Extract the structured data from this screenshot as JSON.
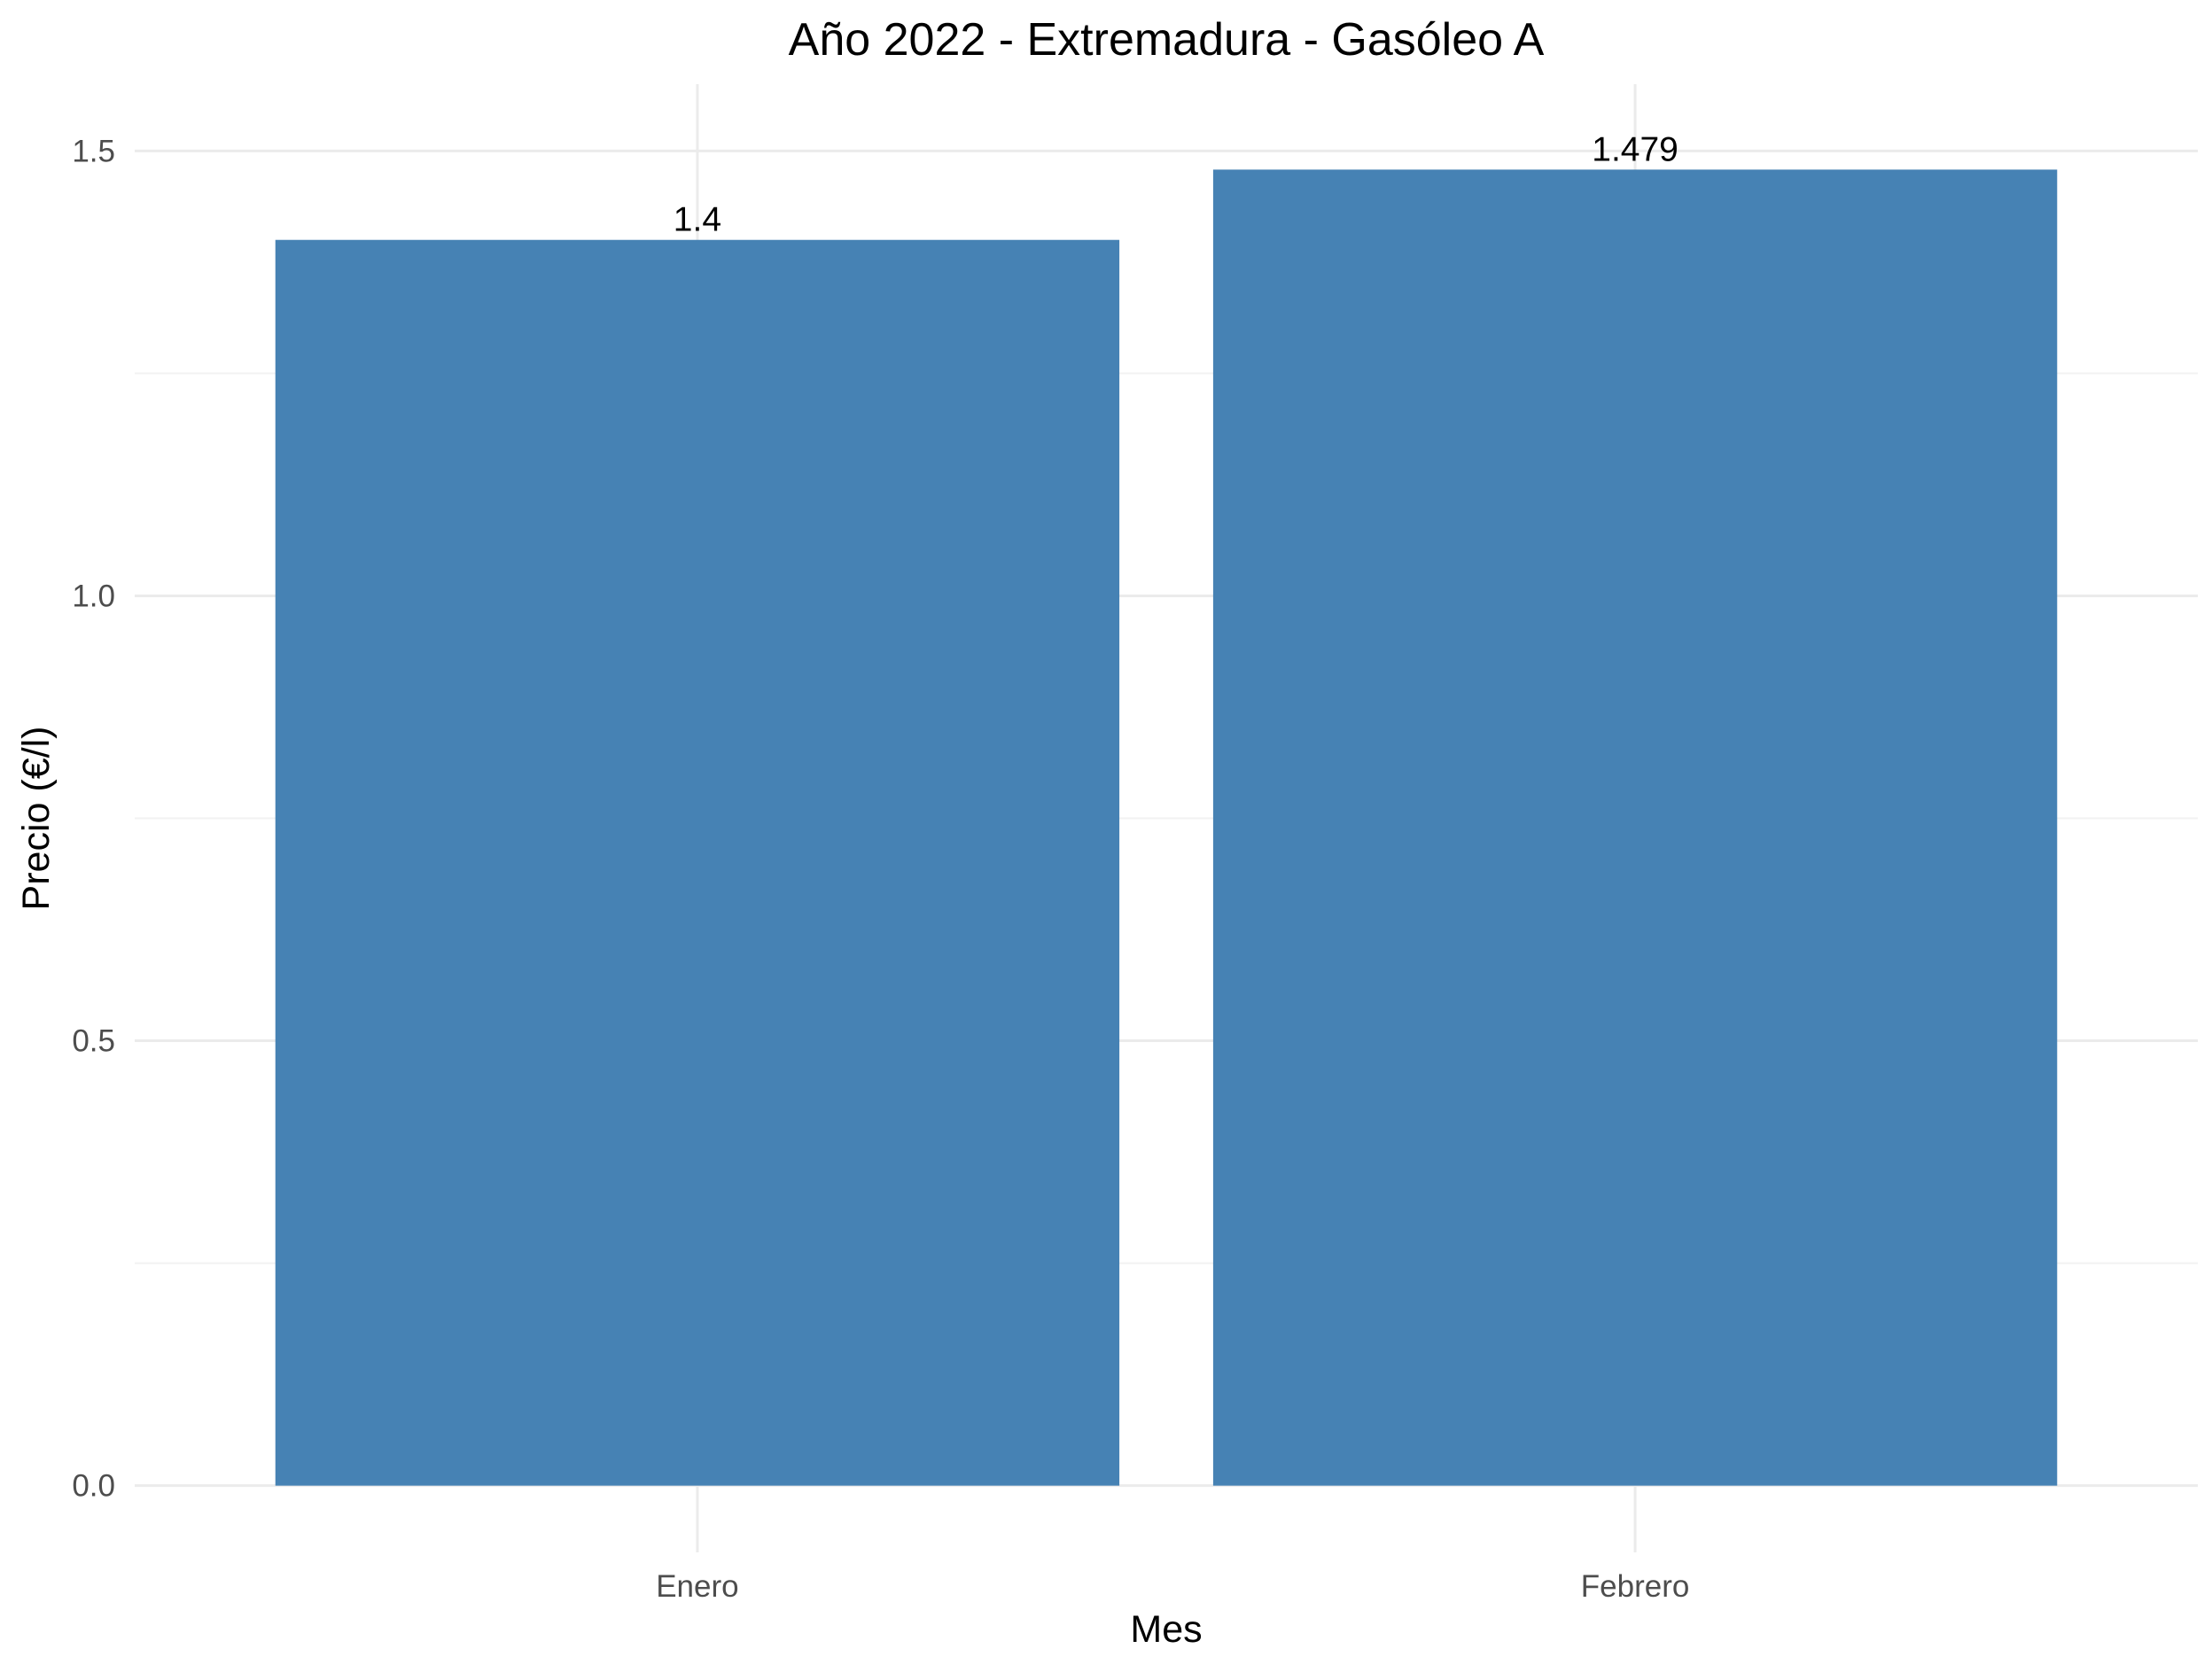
{
  "chart_data": {
    "type": "bar",
    "title": "Año 2022 - Extremadura - Gasóleo A",
    "xlabel": "Mes",
    "ylabel": "Precio (€/l)",
    "categories": [
      "Enero",
      "Febrero"
    ],
    "values": [
      1.4,
      1.479
    ],
    "data_labels": [
      "1.4",
      "1.479"
    ],
    "ylim": [
      -0.075,
      1.575
    ],
    "y_ticks": [
      0.0,
      0.5,
      1.0,
      1.5
    ],
    "y_tick_labels": [
      "0.0",
      "0.5",
      "1.0",
      "1.5"
    ],
    "y_minor_ticks": [
      0.25,
      0.75,
      1.25
    ],
    "grid": true,
    "legend": "none",
    "bar_color": "#4682B4"
  }
}
